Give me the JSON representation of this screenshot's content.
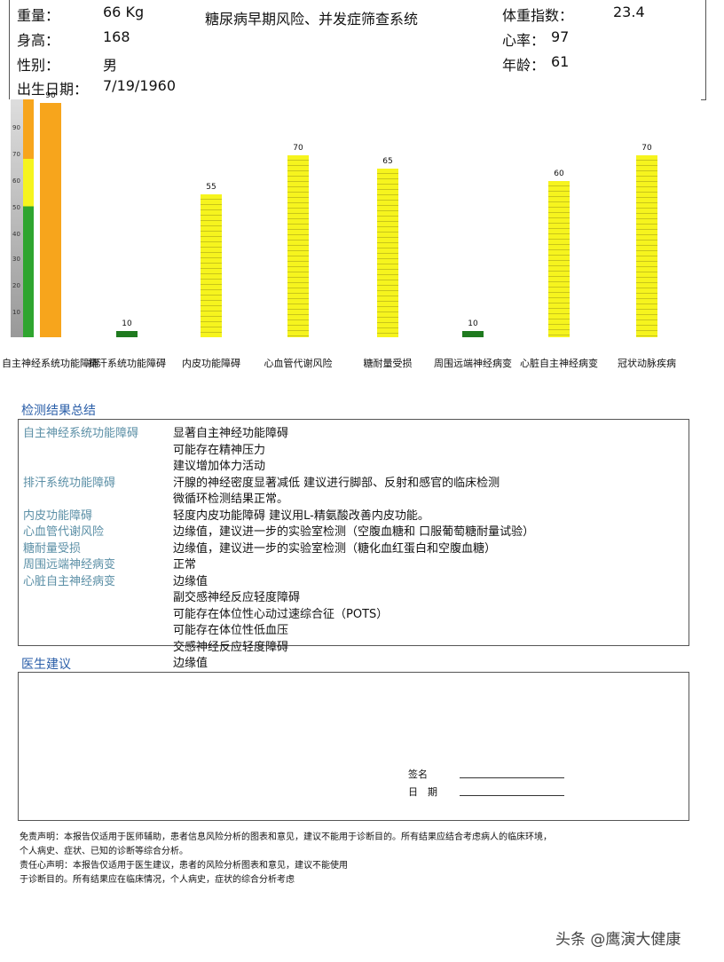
{
  "header": {
    "title": "糖尿病早期风险、并发症筛查系统",
    "weight_label": "重量：",
    "weight": "66 Kg",
    "height_label": "身高：",
    "height": "168",
    "sex_label": "性别：",
    "sex": "男",
    "dob_label": "出生日期：",
    "dob": "7/19/1960",
    "bmi_label": "体重指数：",
    "bmi": "23.4",
    "hr_label": "心率：",
    "hr": "97",
    "age_label": "年龄：",
    "age": "61"
  },
  "chart_data": {
    "type": "bar",
    "categories": [
      "自主神经系统功能障碍",
      "排汗系统功能障碍",
      "内皮功能障碍",
      "心血管代谢风险",
      "糖耐量受损",
      "周围远端神经病变",
      "心脏自主神经病变",
      "冠状动脉疾病"
    ],
    "values": [
      90,
      10,
      55,
      70,
      65,
      10,
      60,
      70
    ],
    "value_labels": [
      "90",
      "10",
      "55",
      "70",
      "65",
      "10",
      "60",
      "70"
    ],
    "bar_colors": [
      "#f7a51c",
      "#1f7a1f",
      "#f6f41e",
      "#f6f41e",
      "#f6f41e",
      "#1f7a1f",
      "#f6f41e",
      "#f6f41e"
    ],
    "scale_ticks": [
      "90",
      "70",
      "60",
      "50",
      "40",
      "30",
      "20",
      "10"
    ],
    "scale_zones": {
      "green": "#2fa52f",
      "yellow": "#f6f41e",
      "orange": "#f7a51c"
    },
    "ylim": [
      0,
      100
    ]
  },
  "summary": {
    "title": "检测结果总结",
    "rows": [
      {
        "label": "自主神经系统功能障碍",
        "lines": [
          "显著自主神经功能障碍",
          "可能存在精神压力",
          "建议增加体力活动"
        ]
      },
      {
        "label": "排汗系统功能障碍",
        "lines": [
          "汗腺的神经密度显著减低 建议进行脚部、反射和感官的临床检测",
          "微循环检测结果正常。"
        ]
      },
      {
        "label": "内皮功能障碍",
        "lines": [
          "轻度内皮功能障碍 建议用L-精氨酸改善内皮功能。"
        ]
      },
      {
        "label": "心血管代谢风险",
        "lines": [
          "边缘值，建议进一步的实验室检测（空腹血糖和 口服葡萄糖耐量试验）"
        ]
      },
      {
        "label": "糖耐量受损",
        "lines": [
          "边缘值，建议进一步的实验室检测（糖化血红蛋白和空腹血糖）"
        ]
      },
      {
        "label": "周围远端神经病变",
        "lines": [
          "正常"
        ]
      },
      {
        "label": "心脏自主神经病变",
        "lines": [
          "边缘值",
          "副交感神经反应轻度障碍",
          "可能存在体位性心动过速综合征（POTS）",
          "可能存在体位性低血压",
          "交感神经反应轻度障碍",
          "边缘值"
        ]
      }
    ]
  },
  "advice": {
    "title": "医生建议",
    "signature_label": "签名",
    "date_label": "日　期"
  },
  "disclaimer": [
    "免责声明：本报告仅适用于医师辅助，患者信息风险分析的图表和意见，建议不能用于诊断目的。所有结果应结合考虑病人的临床环境，",
    "个人病史、症状、已知的诊断等综合分析。",
    "责任心声明：本报告仅适用于医生建议，患者的风险分析图表和意见，建议不能使用",
    "于诊断目的。所有结果应在临床情况，个人病史，症状的综合分析考虑"
  ],
  "watermark": "头条 @鹰演大健康"
}
